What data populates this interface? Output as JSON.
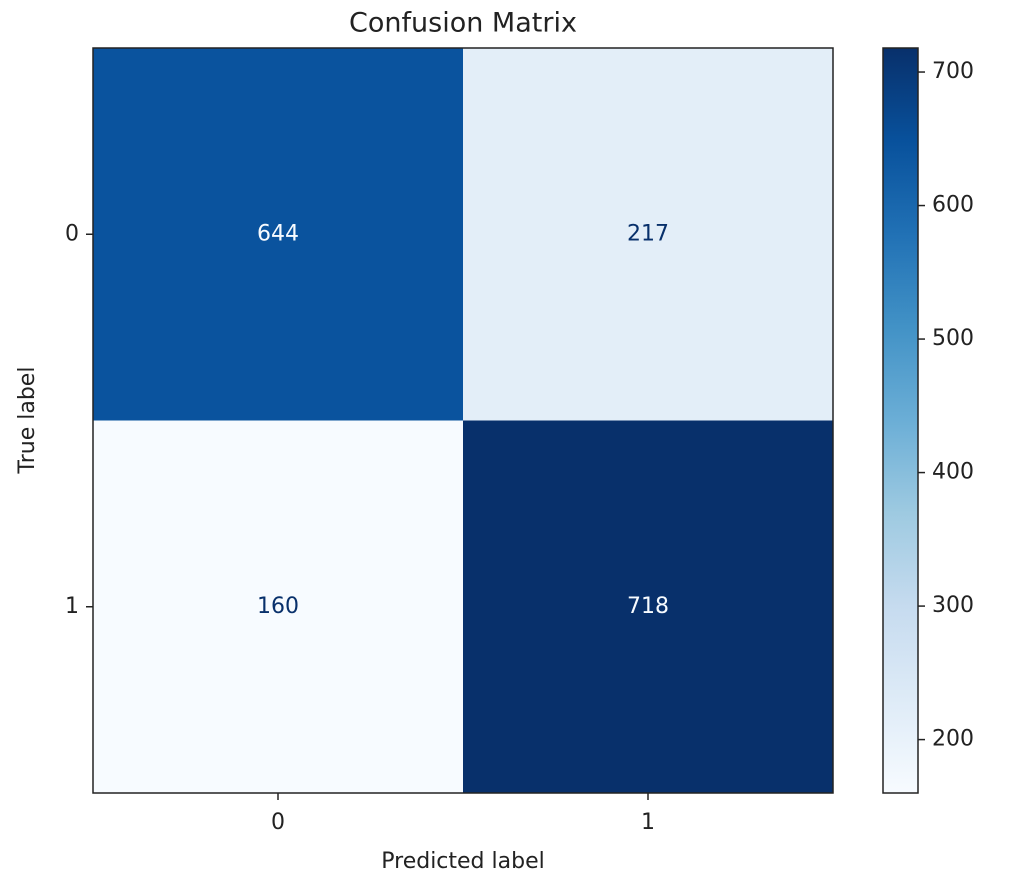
{
  "chart_data": {
    "type": "heatmap",
    "title": "Confusion Matrix",
    "xlabel": "Predicted label",
    "ylabel": "True label",
    "x_categories": [
      "0",
      "1"
    ],
    "y_categories": [
      "0",
      "1"
    ],
    "values": [
      [
        644,
        217
      ],
      [
        160,
        718
      ]
    ],
    "colormap": [
      "#f7fbff",
      "#deebf7",
      "#c6dbef",
      "#9ecae1",
      "#6baed6",
      "#4292c6",
      "#2171b5",
      "#08519c",
      "#08306b"
    ],
    "clim": [
      160,
      718
    ],
    "cticks": [
      200,
      300,
      400,
      500,
      600,
      700
    ]
  }
}
